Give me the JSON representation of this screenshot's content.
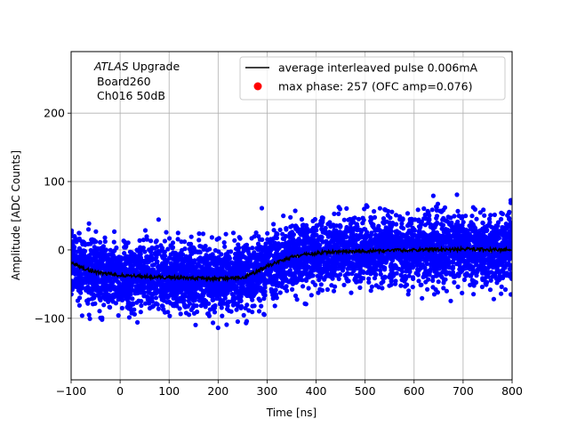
{
  "chart_data": {
    "type": "scatter",
    "title": "",
    "xlabel": "Time [ns]",
    "ylabel": "Amplitude [ADC Counts]",
    "xlim": [
      -100,
      800
    ],
    "ylim": [
      -190,
      290
    ],
    "xticks": [
      -100,
      0,
      100,
      200,
      300,
      400,
      500,
      600,
      700,
      800
    ],
    "yticks": [
      -100,
      0,
      100,
      200
    ],
    "grid": true,
    "legend_position": "upper-right",
    "annotation": {
      "atlas": "ATLAS",
      "upgrade": " Upgrade",
      "board": "Board260",
      "channel": "Ch016 50dB"
    },
    "series": [
      {
        "name": "average interleaved pulse 0.006mA",
        "kind": "line",
        "color": "#000000",
        "x": [
          -100,
          -75,
          -50,
          -25,
          0,
          25,
          50,
          75,
          100,
          125,
          150,
          175,
          200,
          225,
          250,
          275,
          300,
          325,
          350,
          375,
          400,
          425,
          450,
          475,
          500,
          525,
          550,
          575,
          600,
          625,
          650,
          675,
          700,
          725,
          750,
          775,
          800
        ],
        "y": [
          -18,
          -27,
          -32,
          -35,
          -37,
          -38,
          -39,
          -40,
          -40,
          -41,
          -41,
          -42,
          -42,
          -42,
          -40,
          -33,
          -24,
          -17,
          -11,
          -7,
          -5,
          -3,
          -2,
          -2,
          -2,
          -1,
          -1,
          -1,
          0,
          0,
          1,
          1,
          1,
          1,
          0,
          0,
          0
        ]
      },
      {
        "name": "max phase: 257 (OFC amp=0.076)",
        "kind": "marker",
        "color": "#ff0000"
      }
    ],
    "scatter_color": "#0000ff",
    "scatter_spread_sd": 24,
    "scatter_count": 5200
  }
}
